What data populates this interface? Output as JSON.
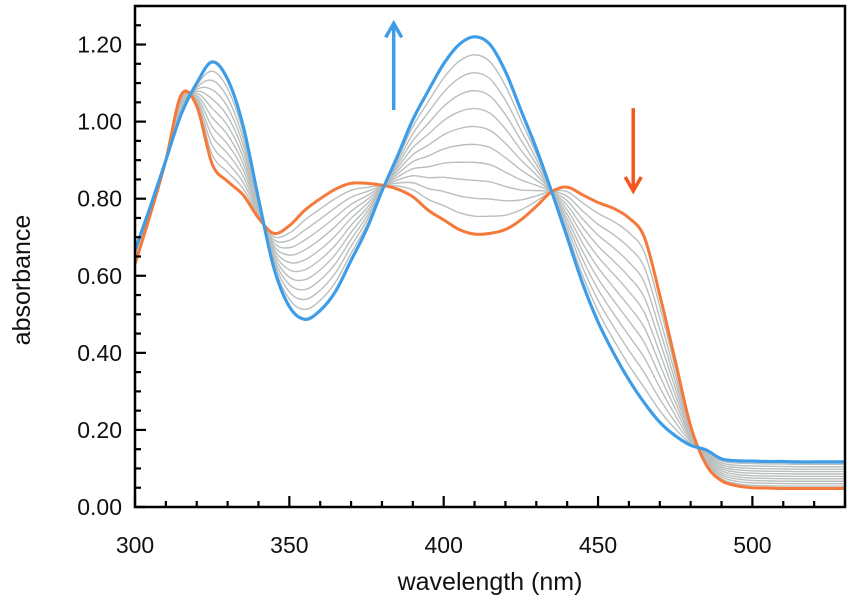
{
  "chart_data": {
    "type": "line",
    "title": "",
    "xlabel": "wavelength (nm)",
    "ylabel": "absorbance",
    "xlim": [
      300,
      530
    ],
    "ylim": [
      0,
      1.3
    ],
    "x_ticks": [
      300,
      350,
      400,
      450,
      500
    ],
    "x_tick_labels": [
      "300",
      "350",
      "400",
      "450",
      "500"
    ],
    "y_ticks": [
      0,
      0.2,
      0.4,
      0.6,
      0.8,
      1.0,
      1.2
    ],
    "y_tick_labels": [
      "0.00",
      "0.20",
      "0.40",
      "0.60",
      "0.80",
      "1.00",
      "1.20"
    ],
    "x_minor_step": 10,
    "y_minor_step": 0.05,
    "grid": false,
    "legend": "none",
    "x": [
      300,
      305,
      310,
      315,
      320,
      325,
      330,
      335,
      340,
      345,
      350,
      355,
      360,
      365,
      370,
      375,
      380,
      385,
      390,
      395,
      400,
      405,
      410,
      415,
      420,
      425,
      430,
      435,
      440,
      445,
      450,
      455,
      460,
      465,
      470,
      475,
      480,
      485,
      490,
      495,
      500,
      505,
      510,
      515,
      520,
      525,
      530
    ],
    "series": [
      {
        "role": "initial",
        "color": "#f5793a",
        "values": [
          0.63,
          0.76,
          0.9,
          1.07,
          1.04,
          0.89,
          0.845,
          0.81,
          0.75,
          0.71,
          0.73,
          0.77,
          0.8,
          0.825,
          0.84,
          0.84,
          0.835,
          0.825,
          0.805,
          0.77,
          0.745,
          0.72,
          0.708,
          0.71,
          0.72,
          0.745,
          0.78,
          0.818,
          0.83,
          0.81,
          0.79,
          0.775,
          0.75,
          0.7,
          0.55,
          0.38,
          0.21,
          0.11,
          0.068,
          0.055,
          0.05,
          0.049,
          0.048,
          0.048,
          0.048,
          0.048,
          0.048
        ]
      },
      {
        "role": "final",
        "color": "#3f9de8",
        "values": [
          0.667,
          0.78,
          0.9,
          1.02,
          1.1,
          1.155,
          1.11,
          0.99,
          0.8,
          0.62,
          0.52,
          0.487,
          0.51,
          0.56,
          0.64,
          0.72,
          0.82,
          0.91,
          1.005,
          1.08,
          1.15,
          1.2,
          1.22,
          1.2,
          1.13,
          1.03,
          0.93,
          0.818,
          0.7,
          0.58,
          0.48,
          0.4,
          0.33,
          0.27,
          0.22,
          0.185,
          0.16,
          0.148,
          0.125,
          0.12,
          0.119,
          0.118,
          0.118,
          0.117,
          0.117,
          0.117,
          0.117
        ]
      }
    ],
    "intermediate_count": 10,
    "intermediate_color": "#b9bfbc",
    "annotations": [
      {
        "type": "arrow",
        "direction": "up",
        "color": "#3f9de8"
      },
      {
        "type": "arrow",
        "direction": "down",
        "color": "#f5571f"
      }
    ]
  }
}
